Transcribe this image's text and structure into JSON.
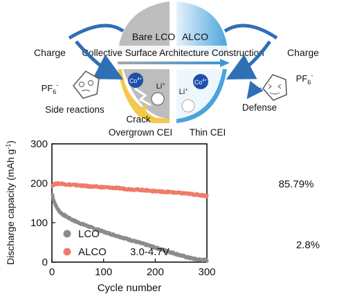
{
  "scheme": {
    "left_title": "Bare LCO",
    "right_title": "ALCO",
    "banner": "Collective Surface Architecture Construction",
    "charge_left": "Charge",
    "charge_right": "Charge",
    "pf6_left_base": "PF",
    "pf6_left_sub": "6",
    "pf6_left_sup": "-",
    "pf6_right_base": "PF",
    "pf6_right_sub": "6",
    "pf6_right_sup": "-",
    "co_left_base": "Co",
    "co_left_sup": "4+",
    "co_right_base": "Co",
    "co_right_sup": "4+",
    "li_left_base": "Li",
    "li_left_sup": "+",
    "li_right_base": "Li",
    "li_right_sup": "+",
    "side_reactions": "Side reactions",
    "crack": "Crack",
    "defense": "Defense",
    "overgrown_cei": "Overgrown CEI",
    "thin_cei": "Thin CEI",
    "colors": {
      "lco_gray": "#bdbdbd",
      "alco_blue": "#5aaee0",
      "arrow_blue": "#2f6fb5",
      "cei_yellow": "#f2c94c",
      "co_ball": "#1f4fa8"
    }
  },
  "chart_data": {
    "type": "scatter",
    "xlabel": "Cycle number",
    "ylabel_main": "Discharge capacity (mAh g",
    "ylabel_sup": "-1",
    "ylabel_end": ")",
    "xlim": [
      0,
      300
    ],
    "ylim": [
      0,
      300
    ],
    "xticks": [
      "0",
      "100",
      "200",
      "300"
    ],
    "yticks": [
      "0",
      "100",
      "200",
      "300"
    ],
    "annotations": {
      "alco_retention": "85.79%",
      "lco_retention": "2.8%",
      "voltage": "3.0-4.7V"
    },
    "legend": {
      "position": "bottom-left"
    },
    "series": [
      {
        "name": "LCO",
        "color": "#8c8c8c",
        "points": [
          [
            1,
            171
          ],
          [
            3,
            160
          ],
          [
            6,
            148
          ],
          [
            10,
            137
          ],
          [
            15,
            128
          ],
          [
            20,
            122
          ],
          [
            30,
            114
          ],
          [
            40,
            107
          ],
          [
            50,
            101
          ],
          [
            60,
            96
          ],
          [
            70,
            91
          ],
          [
            80,
            86
          ],
          [
            90,
            82
          ],
          [
            100,
            77
          ],
          [
            110,
            73
          ],
          [
            120,
            69
          ],
          [
            130,
            65
          ],
          [
            140,
            61
          ],
          [
            150,
            57
          ],
          [
            160,
            53
          ],
          [
            170,
            49
          ],
          [
            180,
            45
          ],
          [
            190,
            41
          ],
          [
            200,
            37
          ],
          [
            210,
            33
          ],
          [
            220,
            29
          ],
          [
            230,
            25
          ],
          [
            240,
            21
          ],
          [
            250,
            17
          ],
          [
            260,
            13
          ],
          [
            270,
            10
          ],
          [
            280,
            7
          ],
          [
            290,
            6
          ],
          [
            300,
            5
          ]
        ]
      },
      {
        "name": "ALCO",
        "color": "#f07b6b",
        "points": [
          [
            1,
            195
          ],
          [
            5,
            198
          ],
          [
            10,
            199
          ],
          [
            20,
            199
          ],
          [
            30,
            197
          ],
          [
            50,
            195
          ],
          [
            75,
            192
          ],
          [
            100,
            190
          ],
          [
            125,
            188
          ],
          [
            150,
            185
          ],
          [
            175,
            183
          ],
          [
            200,
            180
          ],
          [
            225,
            178
          ],
          [
            250,
            175
          ],
          [
            275,
            172
          ],
          [
            300,
            168
          ]
        ]
      }
    ]
  }
}
